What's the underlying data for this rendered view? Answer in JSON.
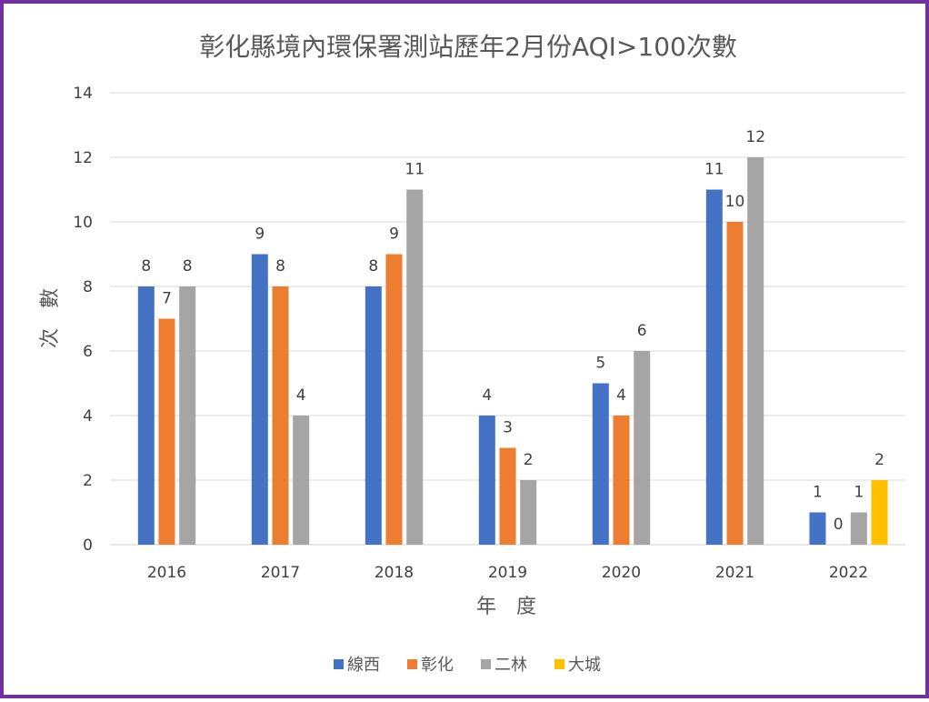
{
  "chart_data": {
    "type": "bar",
    "title": "彰化縣境內環保署測站歷年2月份AQI>100次數",
    "xlabel": "年　度",
    "ylabel": "次　數",
    "ylim": [
      0,
      14
    ],
    "ytick_step": 2,
    "grid": true,
    "legend_position": "bottom",
    "categories": [
      "2016",
      "2017",
      "2018",
      "2019",
      "2020",
      "2021",
      "2022"
    ],
    "series": [
      {
        "name": "線西",
        "color": "#4472C4",
        "values": [
          8,
          9,
          8,
          4,
          5,
          11,
          1
        ]
      },
      {
        "name": "彰化",
        "color": "#ED7D31",
        "values": [
          7,
          8,
          9,
          3,
          4,
          10,
          0
        ]
      },
      {
        "name": "二林",
        "color": "#A5A5A5",
        "values": [
          8,
          4,
          11,
          2,
          6,
          12,
          1
        ]
      },
      {
        "name": "大城",
        "color": "#FFC000",
        "values": [
          null,
          null,
          null,
          null,
          null,
          null,
          2
        ]
      }
    ]
  }
}
